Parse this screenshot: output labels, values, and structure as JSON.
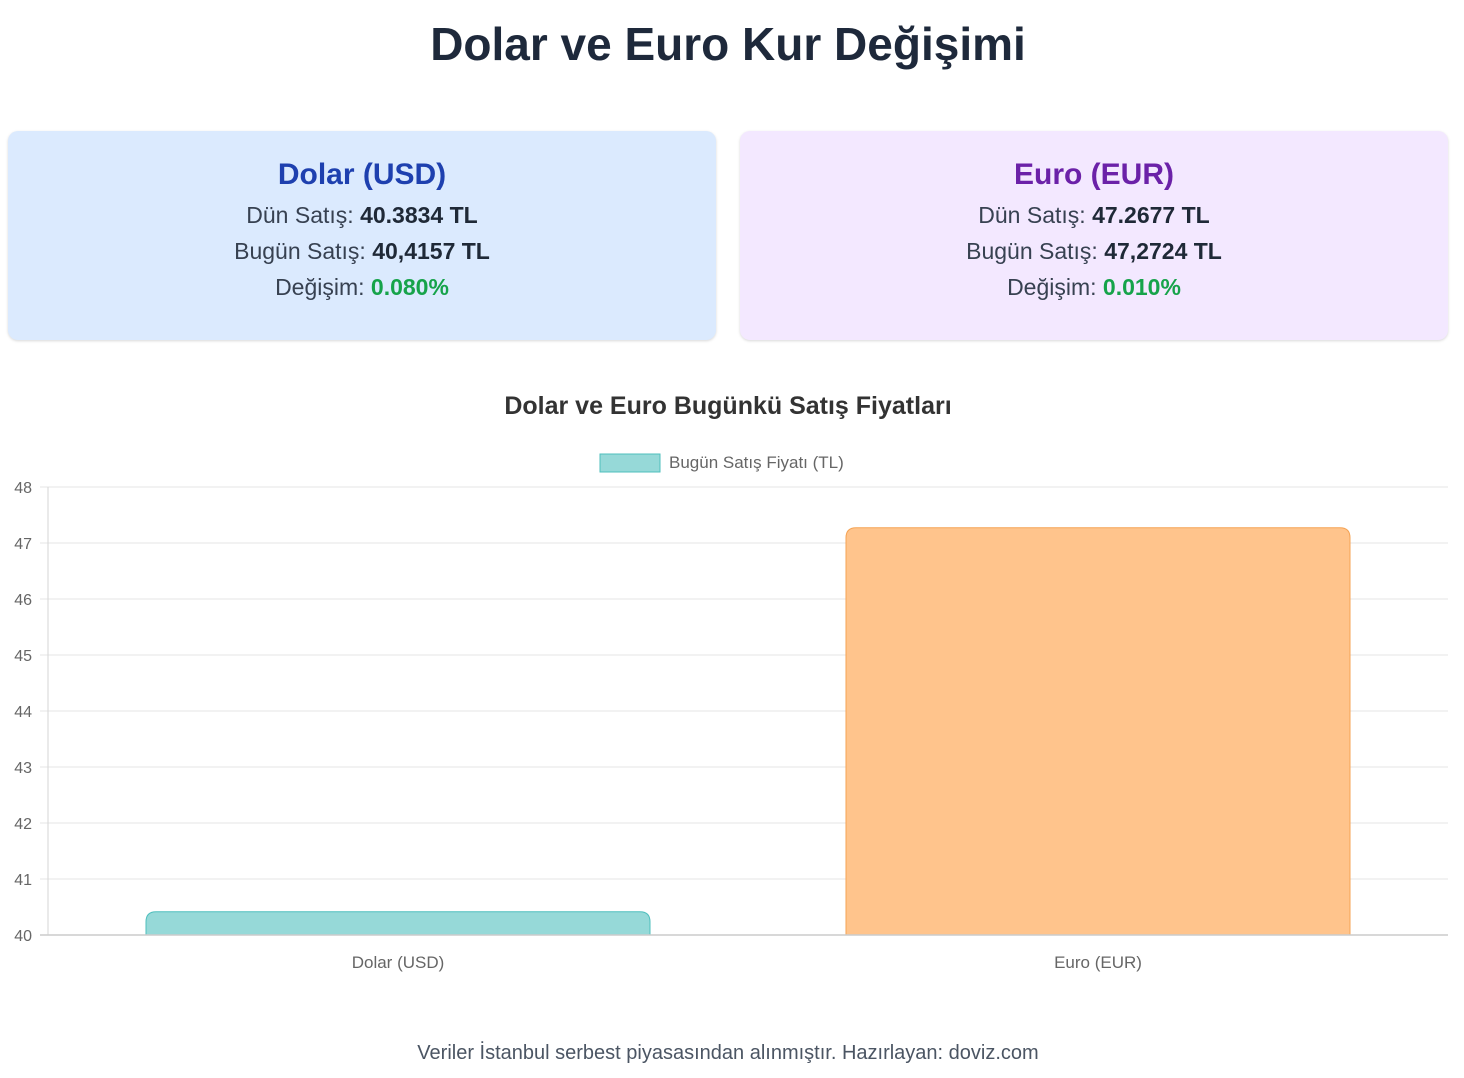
{
  "page": {
    "title": "Dolar ve Euro Kur Değişimi"
  },
  "cards": {
    "usd": {
      "title": "Dolar (USD)",
      "yesterday_label": "Dün Satış:",
      "yesterday_value": "40.3834 TL",
      "today_label": "Bugün Satış:",
      "today_value": "40,4157 TL",
      "change_label": "Değişim:",
      "change_value": "0.080%"
    },
    "eur": {
      "title": "Euro (EUR)",
      "yesterday_label": "Dün Satış:",
      "yesterday_value": "47.2677 TL",
      "today_label": "Bugün Satış:",
      "today_value": "47,2724 TL",
      "change_label": "Değişim:",
      "change_value": "0.010%"
    }
  },
  "chart_data": {
    "type": "bar",
    "title": "Dolar ve Euro Bugünkü Satış Fiyatları",
    "categories": [
      "Dolar (USD)",
      "Euro (EUR)"
    ],
    "series": [
      {
        "name": "Bugün Satış Fiyatı (TL)",
        "values": [
          40.4157,
          47.2724
        ]
      }
    ],
    "bar_colors": [
      "#96d9d8",
      "#ffc48c"
    ],
    "bar_border_colors": [
      "#4fbfbd",
      "#f5a354"
    ],
    "legend_color": "#96d9d8",
    "legend_border_color": "#4fbfbd",
    "ylim": [
      40,
      48
    ],
    "yticks": [
      "48",
      "47",
      "46",
      "45",
      "44",
      "43",
      "42",
      "41",
      "40"
    ],
    "grid": true,
    "legend_position": "top"
  },
  "footer": {
    "text": "Veriler İstanbul serbest piyasasından alınmıştır. Hazırlayan: doviz.com"
  }
}
